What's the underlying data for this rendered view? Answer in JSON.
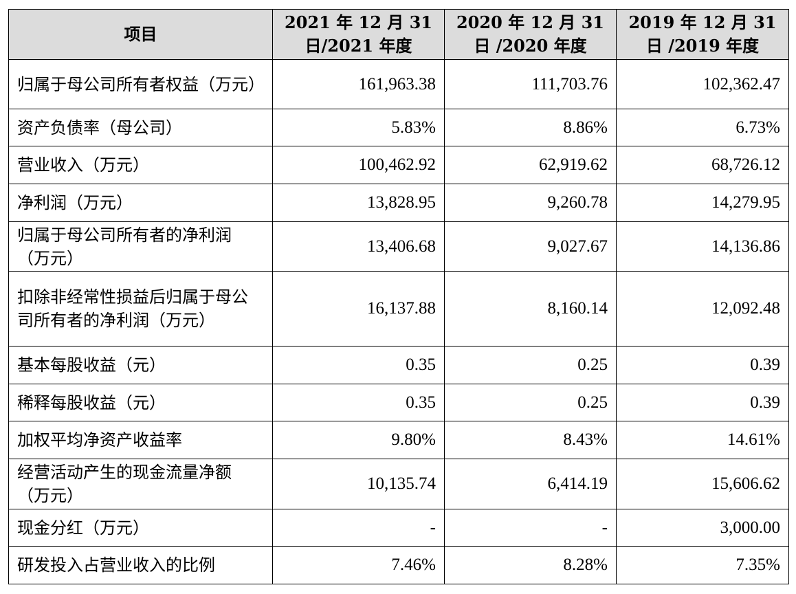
{
  "table": {
    "headers": {
      "item": "项目",
      "col2021": "2021 年 12 月 31 日/2021 年度",
      "col2020": "2020 年 12 月 31 日 /2020 年度",
      "col2019": "2019 年 12 月 31 日 /2019 年度"
    },
    "rows": [
      {
        "label": "归属于母公司所有者权益（万元）",
        "v2021": "161,963.38",
        "v2020": "111,703.76",
        "v2019": "102,362.47"
      },
      {
        "label": "资产负债率（母公司）",
        "v2021": "5.83%",
        "v2020": "8.86%",
        "v2019": "6.73%"
      },
      {
        "label": "营业收入（万元）",
        "v2021": "100,462.92",
        "v2020": "62,919.62",
        "v2019": "68,726.12"
      },
      {
        "label": "净利润（万元）",
        "v2021": "13,828.95",
        "v2020": "9,260.78",
        "v2019": "14,279.95"
      },
      {
        "label": "归属于母公司所有者的净利润（万元）",
        "v2021": "13,406.68",
        "v2020": "9,027.67",
        "v2019": "14,136.86"
      },
      {
        "label": "扣除非经常性损益后归属于母公司所有者的净利润（万元）",
        "v2021": "16,137.88",
        "v2020": "8,160.14",
        "v2019": "12,092.48"
      },
      {
        "label": "基本每股收益（元）",
        "v2021": "0.35",
        "v2020": "0.25",
        "v2019": "0.39"
      },
      {
        "label": "稀释每股收益（元）",
        "v2021": "0.35",
        "v2020": "0.25",
        "v2019": "0.39"
      },
      {
        "label": "加权平均净资产收益率",
        "v2021": "9.80%",
        "v2020": "8.43%",
        "v2019": "14.61%"
      },
      {
        "label": "经营活动产生的现金流量净额（万元）",
        "v2021": "10,135.74",
        "v2020": "6,414.19",
        "v2019": "15,606.62"
      },
      {
        "label": "现金分红（万元）",
        "v2021": "-",
        "v2020": "-",
        "v2019": "3,000.00"
      },
      {
        "label": "研发投入占营业收入的比例",
        "v2021": "7.46%",
        "v2020": "8.28%",
        "v2019": "7.35%"
      }
    ]
  }
}
